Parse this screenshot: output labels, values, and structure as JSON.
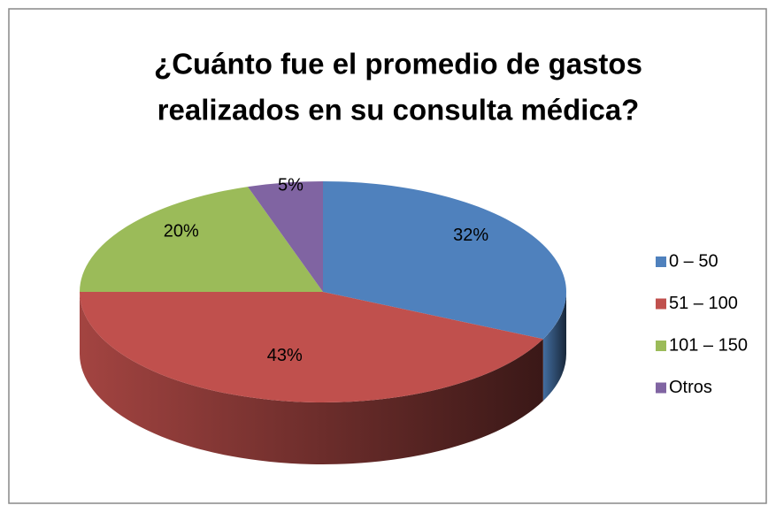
{
  "chart_data": {
    "type": "pie3d",
    "title_lines": [
      "¿Cuánto fue el promedio de gastos",
      "realizados en su consulta médica?"
    ],
    "categories": [
      "0 – 50",
      "51 – 100",
      "101 – 150",
      "Otros"
    ],
    "values": [
      32,
      43,
      20,
      5
    ],
    "value_labels": [
      "32%",
      "43%",
      "20%",
      "5%"
    ],
    "colors": [
      "#4f81bd",
      "#c0504d",
      "#9bbb59",
      "#8064a2"
    ],
    "legend": "right"
  }
}
